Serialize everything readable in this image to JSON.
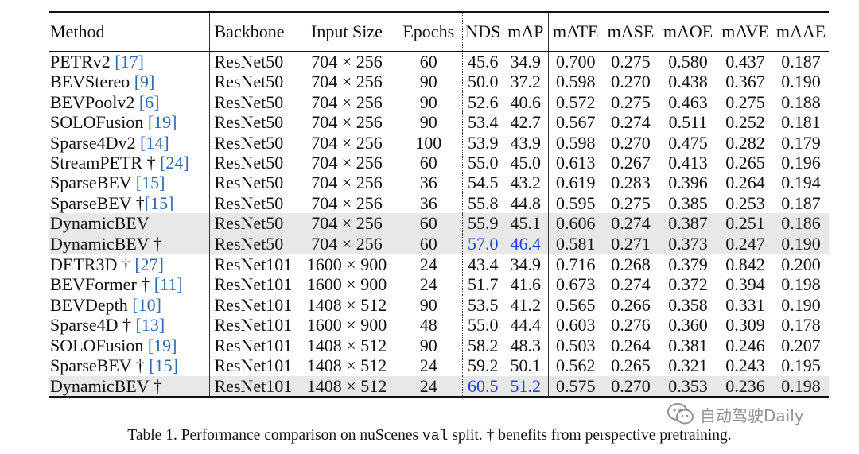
{
  "table": {
    "headers": [
      "Method",
      "Backbone",
      "Input Size",
      "Epochs",
      "NDS",
      "mAP",
      "mATE",
      "mASE",
      "mAOE",
      "mAVE",
      "mAAE"
    ],
    "sections": [
      [
        {
          "name": "PETRv2 ",
          "ref": "[17]",
          "backbone": "ResNet50",
          "input_size": "704 × 256",
          "epochs": "60",
          "nds": "45.6",
          "map": "34.9",
          "mate": "0.700",
          "mase": "0.275",
          "maoe": "0.580",
          "mave": "0.437",
          "maae": "0.187"
        },
        {
          "name": "BEVStereo ",
          "ref": "[9]",
          "backbone": "ResNet50",
          "input_size": "704 × 256",
          "epochs": "90",
          "nds": "50.0",
          "map": "37.2",
          "mate": "0.598",
          "mase": "0.270",
          "maoe": "0.438",
          "mave": "0.367",
          "maae": "0.190"
        },
        {
          "name": "BEVPoolv2 ",
          "ref": "[6]",
          "backbone": "ResNet50",
          "input_size": "704 × 256",
          "epochs": "90",
          "nds": "52.6",
          "map": "40.6",
          "mate": "0.572",
          "mase": "0.275",
          "maoe": "0.463",
          "mave": "0.275",
          "maae": "0.188"
        },
        {
          "name": "SOLOFusion ",
          "ref": "[19]",
          "backbone": "ResNet50",
          "input_size": "704 × 256",
          "epochs": "90",
          "nds": "53.4",
          "map": "42.7",
          "mate": "0.567",
          "mase": "0.274",
          "maoe": "0.511",
          "mave": "0.252",
          "maae": "0.181"
        },
        {
          "name": "Sparse4Dv2 ",
          "ref": "[14]",
          "backbone": "ResNet50",
          "input_size": "704 × 256",
          "epochs": "100",
          "nds": "53.9",
          "map": "43.9",
          "mate": "0.598",
          "mase": "0.270",
          "maoe": "0.475",
          "mave": "0.282",
          "maae": "0.179"
        },
        {
          "name": "StreamPETR † ",
          "ref": "[24]",
          "backbone": "ResNet50",
          "input_size": "704 × 256",
          "epochs": "60",
          "nds": "55.0",
          "map": "45.0",
          "mate": "0.613",
          "mase": "0.267",
          "maoe": "0.413",
          "mave": "0.265",
          "maae": "0.196"
        },
        {
          "name": "SparseBEV ",
          "ref": "[15]",
          "backbone": "ResNet50",
          "input_size": "704 × 256",
          "epochs": "36",
          "nds": "54.5",
          "map": "43.2",
          "mate": "0.619",
          "mase": "0.283",
          "maoe": "0.396",
          "mave": "0.264",
          "maae": "0.194"
        },
        {
          "name": "SparseBEV †",
          "ref": "[15]",
          "backbone": "ResNet50",
          "input_size": "704 × 256",
          "epochs": "36",
          "nds": "55.8",
          "map": "44.8",
          "mate": "0.595",
          "mase": "0.275",
          "maoe": "0.385",
          "mave": "0.253",
          "maae": "0.187"
        },
        {
          "name": "DynamicBEV",
          "ref": "",
          "backbone": "ResNet50",
          "input_size": "704 × 256",
          "epochs": "60",
          "nds": "55.9",
          "map": "45.1",
          "mate": "0.606",
          "mase": "0.274",
          "maoe": "0.387",
          "mave": "0.251",
          "maae": "0.186"
        },
        {
          "name": "DynamicBEV †",
          "ref": "",
          "backbone": "ResNet50",
          "input_size": "704 × 256",
          "epochs": "60",
          "nds": "57.0",
          "map": "46.4",
          "mate": "0.581",
          "mase": "0.271",
          "maoe": "0.373",
          "mave": "0.247",
          "maae": "0.190"
        }
      ],
      [
        {
          "name": "DETR3D † ",
          "ref": "[27]",
          "backbone": "ResNet101",
          "input_size": "1600 × 900",
          "epochs": "24",
          "nds": "43.4",
          "map": "34.9",
          "mate": "0.716",
          "mase": "0.268",
          "maoe": "0.379",
          "mave": "0.842",
          "maae": "0.200"
        },
        {
          "name": "BEVFormer † ",
          "ref": "[11]",
          "backbone": "ResNet101",
          "input_size": "1600 × 900",
          "epochs": "24",
          "nds": "51.7",
          "map": "41.6",
          "mate": "0.673",
          "mase": "0.274",
          "maoe": "0.372",
          "mave": "0.394",
          "maae": "0.198"
        },
        {
          "name": "BEVDepth ",
          "ref": "[10]",
          "backbone": "ResNet101",
          "input_size": "1408 × 512",
          "epochs": "90",
          "nds": "53.5",
          "map": "41.2",
          "mate": "0.565",
          "mase": "0.266",
          "maoe": "0.358",
          "mave": "0.331",
          "maae": "0.190"
        },
        {
          "name": "Sparse4D † ",
          "ref": "[13]",
          "backbone": "ResNet101",
          "input_size": "1600 × 900",
          "epochs": "48",
          "nds": "55.0",
          "map": "44.4",
          "mate": "0.603",
          "mase": "0.276",
          "maoe": "0.360",
          "mave": "0.309",
          "maae": "0.178"
        },
        {
          "name": "SOLOFusion ",
          "ref": "[19]",
          "backbone": "ResNet101",
          "input_size": "1408 × 512",
          "epochs": "90",
          "nds": "58.2",
          "map": "48.3",
          "mate": "0.503",
          "mase": "0.264",
          "maoe": "0.381",
          "mave": "0.246",
          "maae": "0.207"
        },
        {
          "name": "SparseBEV † ",
          "ref": "[15]",
          "backbone": "ResNet101",
          "input_size": "1408 × 512",
          "epochs": "24",
          "nds": "59.2",
          "map": "50.1",
          "mate": "0.562",
          "mase": "0.265",
          "maoe": "0.321",
          "mave": "0.243",
          "maae": "0.195"
        },
        {
          "name": "DynamicBEV †",
          "ref": "",
          "backbone": "ResNet101",
          "input_size": "1408 × 512",
          "epochs": "24",
          "nds": "60.5",
          "map": "51.2",
          "mate": "0.575",
          "mase": "0.270",
          "maoe": "0.353",
          "mave": "0.236",
          "maae": "0.198"
        }
      ]
    ],
    "highlight_color": "#e8e8e8",
    "best_color": "#1a3ee6",
    "ref_color": "#2f6ab8"
  },
  "caption": {
    "prefix": "Table 1. Performance comparison on nuScenes ",
    "code": "val",
    "suffix": " split. † benefits from perspective pretraining."
  },
  "watermark": {
    "text": "自动驾驶Daily",
    "icon": "wechat-icon"
  }
}
